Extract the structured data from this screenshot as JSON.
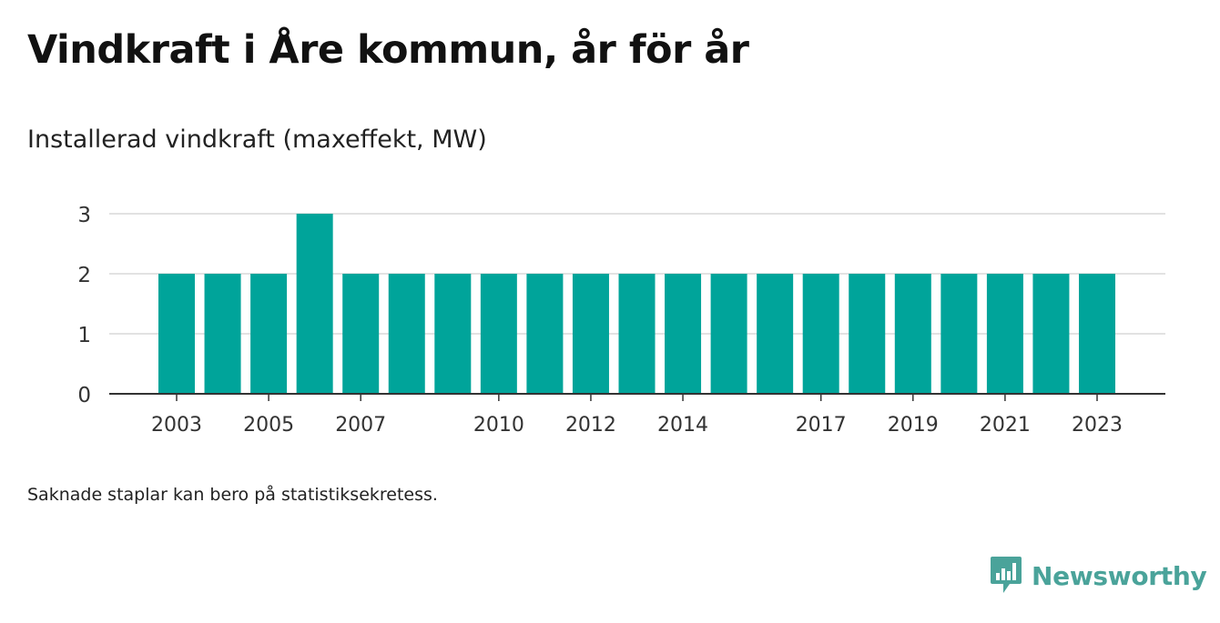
{
  "header": {
    "title": "Vindkraft i Åre kommun, år för år",
    "subtitle": "Installerad vindkraft (maxeffekt, MW)"
  },
  "footer": {
    "note": "Saknade staplar kan bero på statistiksekretess.",
    "brand": "Newsworthy"
  },
  "colors": {
    "bar": "#00a49a",
    "grid": "#d9d9d9",
    "axis": "#333333",
    "brand": "#4aa39a"
  },
  "chart_data": {
    "type": "bar",
    "title": "Vindkraft i Åre kommun, år för år",
    "subtitle": "Installerad vindkraft (maxeffekt, MW)",
    "xlabel": "",
    "ylabel": "",
    "categories": [
      "2003",
      "2004",
      "2005",
      "2006",
      "2007",
      "2008",
      "2009",
      "2010",
      "2011",
      "2012",
      "2013",
      "2014",
      "2015",
      "2016",
      "2017",
      "2018",
      "2019",
      "2020",
      "2021",
      "2022",
      "2023"
    ],
    "values": [
      2,
      2,
      2,
      3,
      2,
      2,
      2,
      2,
      2,
      2,
      2,
      2,
      2,
      2,
      2,
      2,
      2,
      2,
      2,
      2,
      2
    ],
    "x_tick_labels": [
      "2003",
      "2005",
      "2007",
      "2010",
      "2012",
      "2014",
      "2017",
      "2019",
      "2021",
      "2023"
    ],
    "y_ticks": [
      0,
      1,
      2,
      3
    ],
    "ylim": [
      0,
      3
    ],
    "grid": true,
    "legend": "none"
  }
}
